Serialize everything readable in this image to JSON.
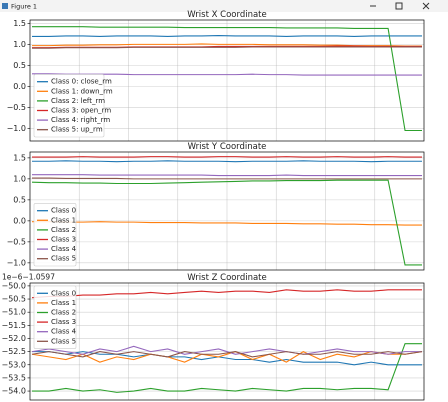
{
  "window": {
    "title": "Figure 1"
  },
  "chart_data": [
    {
      "type": "line",
      "title": "Wrist X Coordinate",
      "categories": [
        null,
        null,
        null,
        null,
        null,
        null,
        null,
        null,
        null,
        null,
        null,
        null,
        null,
        null,
        null,
        null,
        null,
        null,
        null,
        null,
        null,
        null,
        null,
        null
      ],
      "series": [
        {
          "name": "Class 0: close_rm",
          "color": "#1f77b4",
          "values": [
            1.19,
            1.19,
            1.2,
            1.2,
            1.19,
            1.2,
            1.2,
            1.2,
            1.19,
            1.2,
            1.2,
            1.21,
            1.2,
            1.2,
            1.2,
            1.19,
            1.2,
            1.2,
            1.2,
            1.19,
            1.2,
            1.2,
            1.2,
            1.2
          ]
        },
        {
          "name": "Class 1: down_rm",
          "color": "#ff7f0e",
          "values": [
            0.97,
            0.97,
            0.98,
            0.98,
            0.99,
            0.99,
            1.0,
            1.0,
            1.0,
            1.0,
            1.01,
            1.0,
            1.0,
            1.0,
            0.99,
            0.99,
            0.99,
            0.98,
            0.98,
            0.97,
            0.97,
            0.97,
            0.96,
            0.96
          ]
        },
        {
          "name": "Class 2: left_rm",
          "color": "#2ca02c",
          "values": [
            1.42,
            1.42,
            1.42,
            1.42,
            1.41,
            1.41,
            1.41,
            1.41,
            1.41,
            1.4,
            1.4,
            1.4,
            1.4,
            1.4,
            1.4,
            1.39,
            1.39,
            1.39,
            1.39,
            1.38,
            1.38,
            1.38,
            -1.05,
            -1.05
          ]
        },
        {
          "name": "Class 3: open_rm",
          "color": "#d62728",
          "values": [
            0.92,
            0.92,
            0.93,
            0.93,
            0.93,
            0.93,
            0.94,
            0.94,
            0.94,
            0.94,
            0.94,
            0.95,
            0.95,
            0.95,
            0.95,
            0.95,
            0.95,
            0.95,
            0.96,
            0.96,
            0.95,
            0.95,
            0.95,
            0.95
          ]
        },
        {
          "name": "Class 4: right_rm",
          "color": "#9467bd",
          "values": [
            0.3,
            0.3,
            0.29,
            0.29,
            0.29,
            0.29,
            0.28,
            0.28,
            0.28,
            0.28,
            0.28,
            0.28,
            0.28,
            0.29,
            0.28,
            0.28,
            0.27,
            0.27,
            0.27,
            0.27,
            0.27,
            0.27,
            0.27,
            0.27
          ]
        },
        {
          "name": "Class 5: up_rm",
          "color": "#8c564b",
          "values": [
            0.91,
            0.91,
            0.92,
            0.92,
            0.92,
            0.92,
            0.93,
            0.93,
            0.93,
            0.93,
            0.93,
            0.93,
            0.93,
            0.94,
            0.94,
            0.94,
            0.94,
            0.94,
            0.94,
            0.94,
            0.94,
            0.94,
            0.94,
            0.94
          ]
        }
      ],
      "ylim": [
        -1.3,
        1.58
      ],
      "yticks": [
        1.5,
        {
          "value": 1,
          "label": "1.0"
        },
        0.5,
        {
          "value": 0,
          "label": "0.0"
        },
        {
          "value": -0.5,
          "label": "−0.5"
        },
        {
          "value": -1,
          "label": "−1.0"
        }
      ],
      "grid": true,
      "legend": "lower left"
    },
    {
      "type": "line",
      "title": "Wrist Y Coordinate",
      "categories": [
        null,
        null,
        null,
        null,
        null,
        null,
        null,
        null,
        null,
        null,
        null,
        null,
        null,
        null,
        null,
        null,
        null,
        null,
        null,
        null,
        null,
        null,
        null,
        null
      ],
      "series": [
        {
          "name": "Class 0",
          "color": "#1f77b4",
          "values": [
            1.42,
            1.42,
            1.43,
            1.42,
            1.42,
            1.41,
            1.42,
            1.42,
            1.43,
            1.42,
            1.42,
            1.42,
            1.41,
            1.42,
            1.42,
            1.42,
            1.43,
            1.42,
            1.42,
            1.42,
            1.41,
            1.42,
            1.42,
            1.42
          ]
        },
        {
          "name": "Class 1",
          "color": "#ff7f0e",
          "values": [
            -0.02,
            -0.02,
            -0.03,
            -0.03,
            -0.02,
            -0.03,
            -0.03,
            -0.04,
            -0.04,
            -0.04,
            -0.05,
            -0.05,
            -0.05,
            -0.06,
            -0.06,
            -0.06,
            -0.07,
            -0.07,
            -0.08,
            -0.08,
            -0.09,
            -0.09,
            -0.1,
            -0.1
          ]
        },
        {
          "name": "Class 2",
          "color": "#2ca02c",
          "values": [
            0.92,
            0.91,
            0.91,
            0.9,
            0.9,
            0.89,
            0.89,
            0.89,
            0.9,
            0.91,
            0.92,
            0.93,
            0.94,
            0.95,
            0.95,
            0.96,
            0.96,
            0.96,
            0.97,
            0.97,
            0.97,
            0.97,
            -1.05,
            -1.05
          ]
        },
        {
          "name": "Class 3",
          "color": "#d62728",
          "values": [
            1.52,
            1.52,
            1.52,
            1.53,
            1.52,
            1.52,
            1.52,
            1.53,
            1.53,
            1.52,
            1.52,
            1.53,
            1.53,
            1.52,
            1.52,
            1.53,
            1.52,
            1.52,
            1.53,
            1.52,
            1.52,
            1.53,
            1.52,
            1.52
          ]
        },
        {
          "name": "Class 4",
          "color": "#9467bd",
          "values": [
            1.1,
            1.1,
            1.1,
            1.1,
            1.09,
            1.09,
            1.09,
            1.09,
            1.09,
            1.09,
            1.09,
            1.08,
            1.08,
            1.08,
            1.08,
            1.09,
            1.08,
            1.08,
            1.08,
            1.08,
            1.08,
            1.08,
            1.08,
            1.08
          ]
        },
        {
          "name": "Class 5",
          "color": "#8c564b",
          "values": [
            1.02,
            1.02,
            1.01,
            1.01,
            1.01,
            1.01,
            1.0,
            1.0,
            1.0,
            1.0,
            1.0,
            1.0,
            1.0,
            1.0,
            1.0,
            1.0,
            1.0,
            1.0,
            1.0,
            1.0,
            1.0,
            1.0,
            1.0,
            1.0
          ]
        }
      ],
      "ylim": [
        -1.17,
        1.64
      ],
      "yticks": [
        1.5,
        {
          "value": 1,
          "label": "1.0"
        },
        0.5,
        {
          "value": 0,
          "label": "0.0"
        },
        {
          "value": -0.5,
          "label": "−0.5"
        },
        {
          "value": -1,
          "label": "−1.0"
        }
      ],
      "grid": true,
      "legend": "lower left"
    },
    {
      "type": "line",
      "title": "Wrist Z Coordinate",
      "offset_label": "1e−6−1.0597",
      "categories": [
        null,
        null,
        null,
        null,
        null,
        null,
        null,
        null,
        null,
        null,
        null,
        null,
        null,
        null,
        null,
        null,
        null,
        null,
        null,
        null,
        null,
        null,
        null,
        null
      ],
      "series": [
        {
          "name": "Class 0",
          "color": "#1f77b4",
          "values": [
            -52.5,
            -52.5,
            -52.6,
            -52.5,
            -52.6,
            -52.6,
            -52.7,
            -52.6,
            -52.7,
            -52.7,
            -52.8,
            -52.7,
            -52.8,
            -52.8,
            -52.9,
            -52.8,
            -52.9,
            -52.9,
            -52.9,
            -53.0,
            -52.9,
            -53.0,
            -53.0,
            -53.0
          ]
        },
        {
          "name": "Class 1",
          "color": "#ff7f0e",
          "values": [
            -52.6,
            -52.7,
            -52.8,
            -52.6,
            -52.9,
            -52.7,
            -52.8,
            -52.6,
            -52.7,
            -52.9,
            -52.6,
            -52.7,
            -52.5,
            -52.8,
            -52.6,
            -52.9,
            -52.5,
            -52.8,
            -52.6,
            -52.7,
            -52.5,
            -52.6,
            -52.6,
            -52.5
          ]
        },
        {
          "name": "Class 2",
          "color": "#2ca02c",
          "values": [
            -54.0,
            -54.0,
            -53.9,
            -54.0,
            -53.95,
            -54.05,
            -54.0,
            -53.9,
            -54.0,
            -54.0,
            -53.9,
            -53.95,
            -54.0,
            -53.9,
            -53.95,
            -54.0,
            -53.9,
            -53.9,
            -53.95,
            -53.9,
            -53.9,
            -53.95,
            -52.2,
            -52.2
          ]
        },
        {
          "name": "Class 3",
          "color": "#d62728",
          "values": [
            -50.45,
            -50.4,
            -50.4,
            -50.35,
            -50.35,
            -50.3,
            -50.3,
            -50.25,
            -50.3,
            -50.25,
            -50.2,
            -50.25,
            -50.2,
            -50.2,
            -50.25,
            -50.15,
            -50.2,
            -50.2,
            -50.15,
            -50.2,
            -50.2,
            -50.15,
            -50.15,
            -50.15
          ]
        },
        {
          "name": "Class 4",
          "color": "#9467bd",
          "values": [
            -52.5,
            -52.4,
            -52.5,
            -52.6,
            -52.4,
            -52.5,
            -52.3,
            -52.5,
            -52.4,
            -52.6,
            -52.5,
            -52.4,
            -52.6,
            -52.5,
            -52.4,
            -52.5,
            -52.6,
            -52.5,
            -52.4,
            -52.5,
            -52.5,
            -52.6,
            -52.5,
            -52.5
          ]
        },
        {
          "name": "Class 5",
          "color": "#8c564b",
          "values": [
            -52.6,
            -52.5,
            -52.6,
            -52.7,
            -52.5,
            -52.6,
            -52.5,
            -52.6,
            -52.7,
            -52.5,
            -52.6,
            -52.6,
            -52.5,
            -52.7,
            -52.6,
            -52.5,
            -52.6,
            -52.6,
            -52.5,
            -52.6,
            -52.6,
            -52.5,
            -52.6,
            -52.5
          ]
        }
      ],
      "ylim": [
        -54.34,
        -49.89
      ],
      "yticks": [
        {
          "value": -50,
          "label": "−50.0"
        },
        {
          "value": -50.5,
          "label": "−50.5"
        },
        {
          "value": -51,
          "label": "−51.0"
        },
        {
          "value": -51.5,
          "label": "−51.5"
        },
        {
          "value": -52,
          "label": "−52.0"
        },
        {
          "value": -52.5,
          "label": "−52.5"
        },
        {
          "value": -53,
          "label": "−53.0"
        },
        {
          "value": -53.5,
          "label": "−53.5"
        },
        {
          "value": -54,
          "label": "−54.0"
        }
      ],
      "grid": true,
      "legend": "upper left"
    }
  ]
}
